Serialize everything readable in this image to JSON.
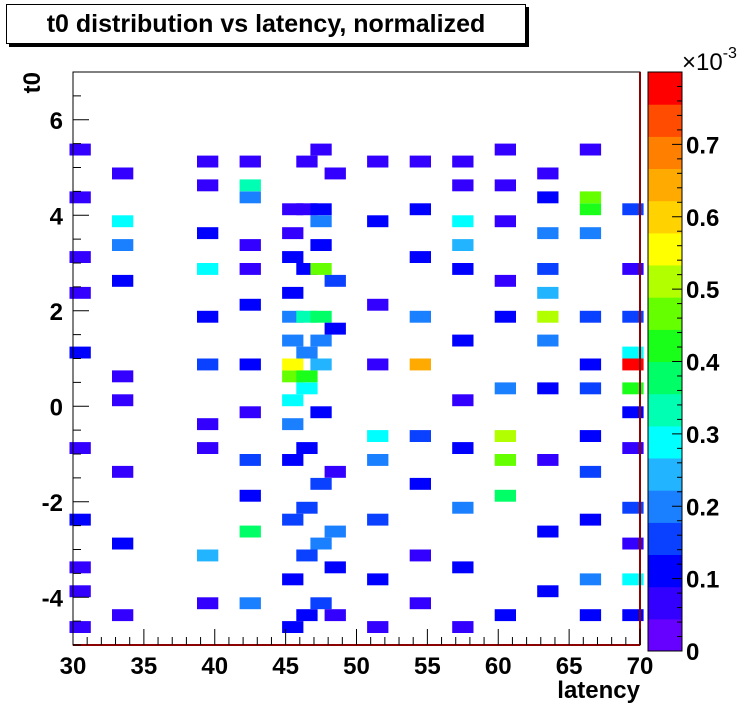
{
  "chart_data": {
    "type": "heatmap",
    "title": "t0 distribution vs latency, normalized",
    "xlabel": "latency",
    "ylabel": "t0",
    "xlim": [
      30,
      70
    ],
    "ylim": [
      -5,
      7
    ],
    "x_ticks": [
      "30",
      "35",
      "40",
      "45",
      "50",
      "55",
      "60",
      "65",
      "70"
    ],
    "y_ticks": [
      "-4",
      "-2",
      "0",
      "2",
      "4",
      "6"
    ],
    "z_exponent_label": "×10",
    "z_exponent_power": "-3",
    "z_ticks": [
      "0",
      "0.1",
      "0.2",
      "0.3",
      "0.4",
      "0.5",
      "0.6",
      "0.7"
    ],
    "z_range": [
      0,
      0.8
    ],
    "bin_width_x": 1.5,
    "bin_width_y": 0.25,
    "cells": [
      [
        30.5,
        -4.75,
        0.08
      ],
      [
        30.5,
        -4.0,
        0.07
      ],
      [
        30.5,
        -3.5,
        0.06
      ],
      [
        30.5,
        -2.5,
        0.09
      ],
      [
        30.5,
        -1.0,
        0.07
      ],
      [
        30.5,
        1.0,
        0.1
      ],
      [
        30.5,
        2.25,
        0.08
      ],
      [
        30.5,
        3.0,
        0.06
      ],
      [
        30.5,
        4.25,
        0.07
      ],
      [
        30.5,
        5.25,
        0.05
      ],
      [
        33.5,
        -4.5,
        0.07
      ],
      [
        33.5,
        -3.0,
        0.1
      ],
      [
        33.5,
        -1.5,
        0.08
      ],
      [
        33.5,
        0.0,
        0.05
      ],
      [
        33.5,
        0.5,
        0.06
      ],
      [
        33.5,
        2.5,
        0.12
      ],
      [
        33.5,
        3.25,
        0.2
      ],
      [
        33.5,
        3.75,
        0.28
      ],
      [
        33.5,
        4.75,
        0.06
      ],
      [
        39.5,
        -4.25,
        0.06
      ],
      [
        39.5,
        -3.25,
        0.25
      ],
      [
        39.5,
        -1.0,
        0.06
      ],
      [
        39.5,
        -0.5,
        0.08
      ],
      [
        39.5,
        0.75,
        0.16
      ],
      [
        39.5,
        1.75,
        0.09
      ],
      [
        39.5,
        2.75,
        0.28
      ],
      [
        39.5,
        3.5,
        0.1
      ],
      [
        39.5,
        4.5,
        0.05
      ],
      [
        39.5,
        5.0,
        0.06
      ],
      [
        42.5,
        -4.25,
        0.22
      ],
      [
        42.5,
        -2.75,
        0.36
      ],
      [
        42.5,
        -2.0,
        0.09
      ],
      [
        42.5,
        -1.25,
        0.15
      ],
      [
        42.5,
        -0.25,
        0.07
      ],
      [
        42.5,
        0.75,
        0.1
      ],
      [
        42.5,
        2.0,
        0.12
      ],
      [
        42.5,
        2.75,
        0.08
      ],
      [
        42.5,
        3.25,
        0.05
      ],
      [
        42.5,
        4.25,
        0.18
      ],
      [
        42.5,
        4.5,
        0.32
      ],
      [
        42.5,
        5.0,
        0.06
      ],
      [
        45.5,
        -4.75,
        0.12
      ],
      [
        45.5,
        -3.75,
        0.1
      ],
      [
        45.5,
        -2.5,
        0.14
      ],
      [
        45.5,
        -1.25,
        0.12
      ],
      [
        45.5,
        -0.5,
        0.2
      ],
      [
        45.5,
        0.0,
        0.3
      ],
      [
        45.5,
        0.5,
        0.48
      ],
      [
        45.5,
        0.75,
        0.55
      ],
      [
        45.5,
        1.25,
        0.2
      ],
      [
        45.5,
        1.75,
        0.22
      ],
      [
        45.5,
        2.25,
        0.12
      ],
      [
        45.5,
        3.0,
        0.09
      ],
      [
        45.5,
        3.5,
        0.07
      ],
      [
        45.5,
        4.0,
        0.07
      ],
      [
        46.5,
        -4.5,
        0.1
      ],
      [
        46.5,
        -3.25,
        0.16
      ],
      [
        46.5,
        -2.25,
        0.14
      ],
      [
        46.5,
        -1.0,
        0.1
      ],
      [
        46.5,
        0.25,
        0.3
      ],
      [
        46.5,
        0.5,
        0.44
      ],
      [
        46.5,
        1.0,
        0.22
      ],
      [
        46.5,
        1.75,
        0.32
      ],
      [
        46.5,
        2.75,
        0.1
      ],
      [
        46.5,
        4.0,
        0.06
      ],
      [
        46.5,
        5.0,
        0.05
      ],
      [
        47.5,
        -4.25,
        0.14
      ],
      [
        47.5,
        -3.0,
        0.2
      ],
      [
        47.5,
        -1.75,
        0.16
      ],
      [
        47.5,
        -0.25,
        0.1
      ],
      [
        47.5,
        0.75,
        0.24
      ],
      [
        47.5,
        1.25,
        0.18
      ],
      [
        47.5,
        1.75,
        0.36
      ],
      [
        47.5,
        2.75,
        0.45
      ],
      [
        47.5,
        3.25,
        0.1
      ],
      [
        47.5,
        3.75,
        0.22
      ],
      [
        47.5,
        4.0,
        0.12
      ],
      [
        47.5,
        5.25,
        0.07
      ],
      [
        48.5,
        -4.5,
        0.08
      ],
      [
        48.5,
        -3.5,
        0.12
      ],
      [
        48.5,
        -2.75,
        0.18
      ],
      [
        48.5,
        -1.5,
        0.08
      ],
      [
        48.5,
        1.5,
        0.1
      ],
      [
        48.5,
        2.5,
        0.14
      ],
      [
        48.5,
        4.75,
        0.05
      ],
      [
        51.5,
        -4.75,
        0.08
      ],
      [
        51.5,
        -3.75,
        0.1
      ],
      [
        51.5,
        -2.5,
        0.16
      ],
      [
        51.5,
        -1.25,
        0.2
      ],
      [
        51.5,
        -0.75,
        0.3
      ],
      [
        51.5,
        0.75,
        0.08
      ],
      [
        51.5,
        2.0,
        0.06
      ],
      [
        51.5,
        3.75,
        0.1
      ],
      [
        51.5,
        5.0,
        0.06
      ],
      [
        54.5,
        -4.25,
        0.08
      ],
      [
        54.5,
        -3.25,
        0.06
      ],
      [
        54.5,
        -1.75,
        0.1
      ],
      [
        54.5,
        -0.75,
        0.14
      ],
      [
        54.5,
        0.75,
        0.65
      ],
      [
        54.5,
        1.75,
        0.2
      ],
      [
        54.5,
        3.0,
        0.12
      ],
      [
        54.5,
        4.0,
        0.1
      ],
      [
        54.5,
        5.0,
        0.06
      ],
      [
        57.5,
        -4.75,
        0.08
      ],
      [
        57.5,
        -3.5,
        0.12
      ],
      [
        57.5,
        -2.25,
        0.22
      ],
      [
        57.5,
        -1.0,
        0.1
      ],
      [
        57.5,
        0.0,
        0.07
      ],
      [
        57.5,
        1.25,
        0.12
      ],
      [
        57.5,
        2.75,
        0.1
      ],
      [
        57.5,
        3.25,
        0.26
      ],
      [
        57.5,
        3.75,
        0.3
      ],
      [
        57.5,
        4.5,
        0.08
      ],
      [
        57.5,
        5.0,
        0.06
      ],
      [
        60.5,
        -4.5,
        0.1
      ],
      [
        60.5,
        -2.0,
        0.36
      ],
      [
        60.5,
        -1.25,
        0.48
      ],
      [
        60.5,
        -0.75,
        0.52
      ],
      [
        60.5,
        0.25,
        0.2
      ],
      [
        60.5,
        1.75,
        0.1
      ],
      [
        60.5,
        2.5,
        0.08
      ],
      [
        60.5,
        3.75,
        0.06
      ],
      [
        60.5,
        4.5,
        0.08
      ],
      [
        60.5,
        5.25,
        0.05
      ],
      [
        63.5,
        -4.0,
        0.1
      ],
      [
        63.5,
        -2.75,
        0.12
      ],
      [
        63.5,
        -1.25,
        0.08
      ],
      [
        63.5,
        0.25,
        0.1
      ],
      [
        63.5,
        1.25,
        0.2
      ],
      [
        63.5,
        2.25,
        0.25
      ],
      [
        63.5,
        2.75,
        0.14
      ],
      [
        63.5,
        3.5,
        0.2
      ],
      [
        63.5,
        4.25,
        0.1
      ],
      [
        63.5,
        4.75,
        0.08
      ],
      [
        63.5,
        1.75,
        0.5
      ],
      [
        66.5,
        -4.5,
        0.12
      ],
      [
        66.5,
        -3.75,
        0.2
      ],
      [
        66.5,
        -2.5,
        0.1
      ],
      [
        66.5,
        -1.5,
        0.14
      ],
      [
        66.5,
        -0.75,
        0.12
      ],
      [
        66.5,
        0.25,
        0.15
      ],
      [
        66.5,
        0.75,
        0.1
      ],
      [
        66.5,
        1.75,
        0.14
      ],
      [
        66.5,
        3.5,
        0.2
      ],
      [
        66.5,
        4.0,
        0.4
      ],
      [
        66.5,
        4.25,
        0.46
      ],
      [
        66.5,
        5.25,
        0.06
      ],
      [
        69.5,
        -4.5,
        0.1
      ],
      [
        69.5,
        -3.75,
        0.3
      ],
      [
        69.5,
        -3.0,
        0.06
      ],
      [
        69.5,
        -2.25,
        0.14
      ],
      [
        69.5,
        -1.0,
        0.08
      ],
      [
        69.5,
        -0.25,
        0.12
      ],
      [
        69.5,
        0.25,
        0.4
      ],
      [
        69.5,
        0.75,
        0.78
      ],
      [
        69.5,
        1.0,
        0.28
      ],
      [
        69.5,
        1.75,
        0.14
      ],
      [
        69.5,
        2.75,
        0.08
      ],
      [
        69.5,
        4.0,
        0.14
      ]
    ]
  }
}
